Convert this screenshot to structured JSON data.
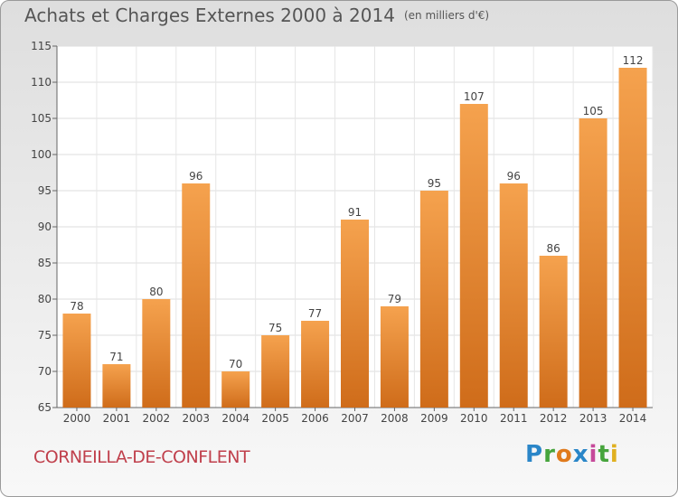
{
  "header": {
    "title": "Achats et Charges Externes 2000 à 2014",
    "unit": "(en milliers d'€)"
  },
  "footer": {
    "commune": "CORNEILLA-DE-CONFLENT",
    "logo": [
      "P",
      "r",
      "o",
      "x",
      "i",
      "t",
      "i"
    ]
  },
  "colors": {
    "bar_light": "#f5a14c",
    "bar_dark": "#cf6c1a",
    "commune": "#c0404c"
  },
  "chart_data": {
    "type": "bar",
    "title": "Achats et Charges Externes 2000 à 2014",
    "subtitle": "(en milliers d'€)",
    "xlabel": "",
    "ylabel": "",
    "categories": [
      "2000",
      "2001",
      "2002",
      "2003",
      "2004",
      "2005",
      "2006",
      "2007",
      "2008",
      "2009",
      "2010",
      "2011",
      "2012",
      "2013",
      "2014"
    ],
    "values": [
      78,
      71,
      80,
      96,
      70,
      75,
      77,
      91,
      79,
      95,
      107,
      96,
      86,
      105,
      112
    ],
    "ylim": [
      65,
      115
    ],
    "yticks": [
      65,
      70,
      75,
      80,
      85,
      90,
      95,
      100,
      105,
      110,
      115
    ],
    "grid": true,
    "legend": "none"
  }
}
